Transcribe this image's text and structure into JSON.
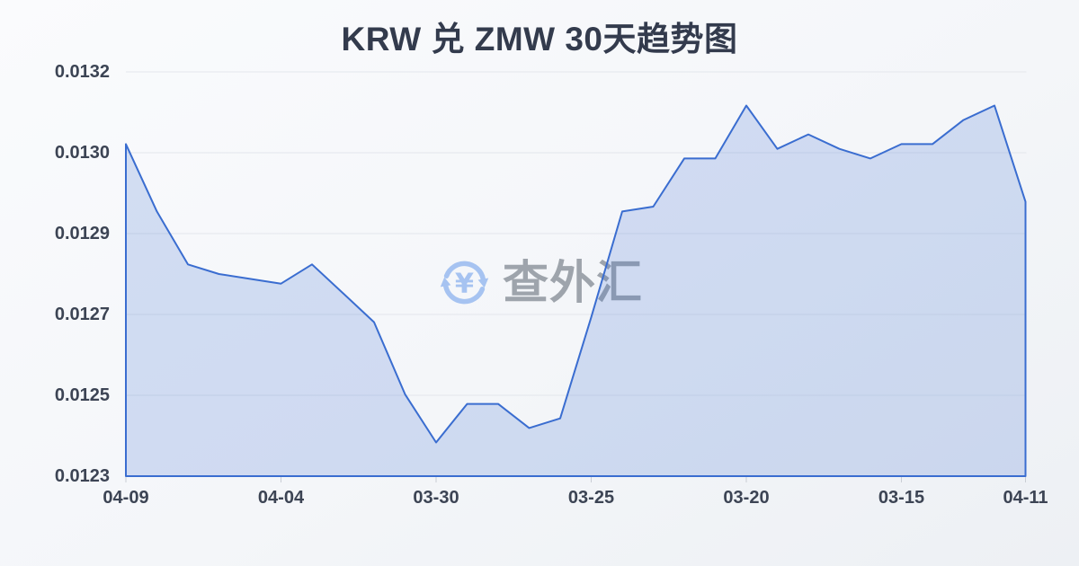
{
  "watermark": {
    "text": "查外汇",
    "icon": "currency-exchange-refresh-icon",
    "icon_color": "#a6c3f1",
    "text_color": "#9aa0a8"
  },
  "colors": {
    "background_top": "#fafbfd",
    "background_bottom": "#edf0f4",
    "title": "#333b4d",
    "axis_label": "#3c4454",
    "gridline": "#e3e6ec",
    "tick": "#c9cdd4",
    "line": "#3a6dd0",
    "fill": "rgba(61,110,208,0.20)"
  },
  "chart_data": {
    "type": "area",
    "title": "KRW 兑 ZMW 30天趋势图",
    "xlabel": "",
    "ylabel": "",
    "grid": true,
    "legend_position": "none",
    "ylim": [
      0.01234,
      0.01318
    ],
    "y_tick_labels": [
      "0.0132",
      "0.0130",
      "0.0129",
      "0.0127",
      "0.0125",
      "0.0123"
    ],
    "x_tick_labels": [
      "04-09",
      "04-04",
      "03-30",
      "03-25",
      "03-20",
      "03-15",
      "04-11"
    ],
    "x_tick_indices": [
      0,
      5,
      10,
      15,
      20,
      25,
      29
    ],
    "num_points": 30,
    "values": [
      0.01303,
      0.01289,
      0.01278,
      0.01276,
      0.01275,
      0.01274,
      0.01278,
      0.01272,
      0.01266,
      0.01251,
      0.01241,
      0.01249,
      0.01249,
      0.01244,
      0.01246,
      0.01267,
      0.01289,
      0.0129,
      0.013,
      0.013,
      0.01311,
      0.01302,
      0.01305,
      0.01302,
      0.013,
      0.01303,
      0.01303,
      0.01308,
      0.01311,
      0.01291
    ]
  }
}
